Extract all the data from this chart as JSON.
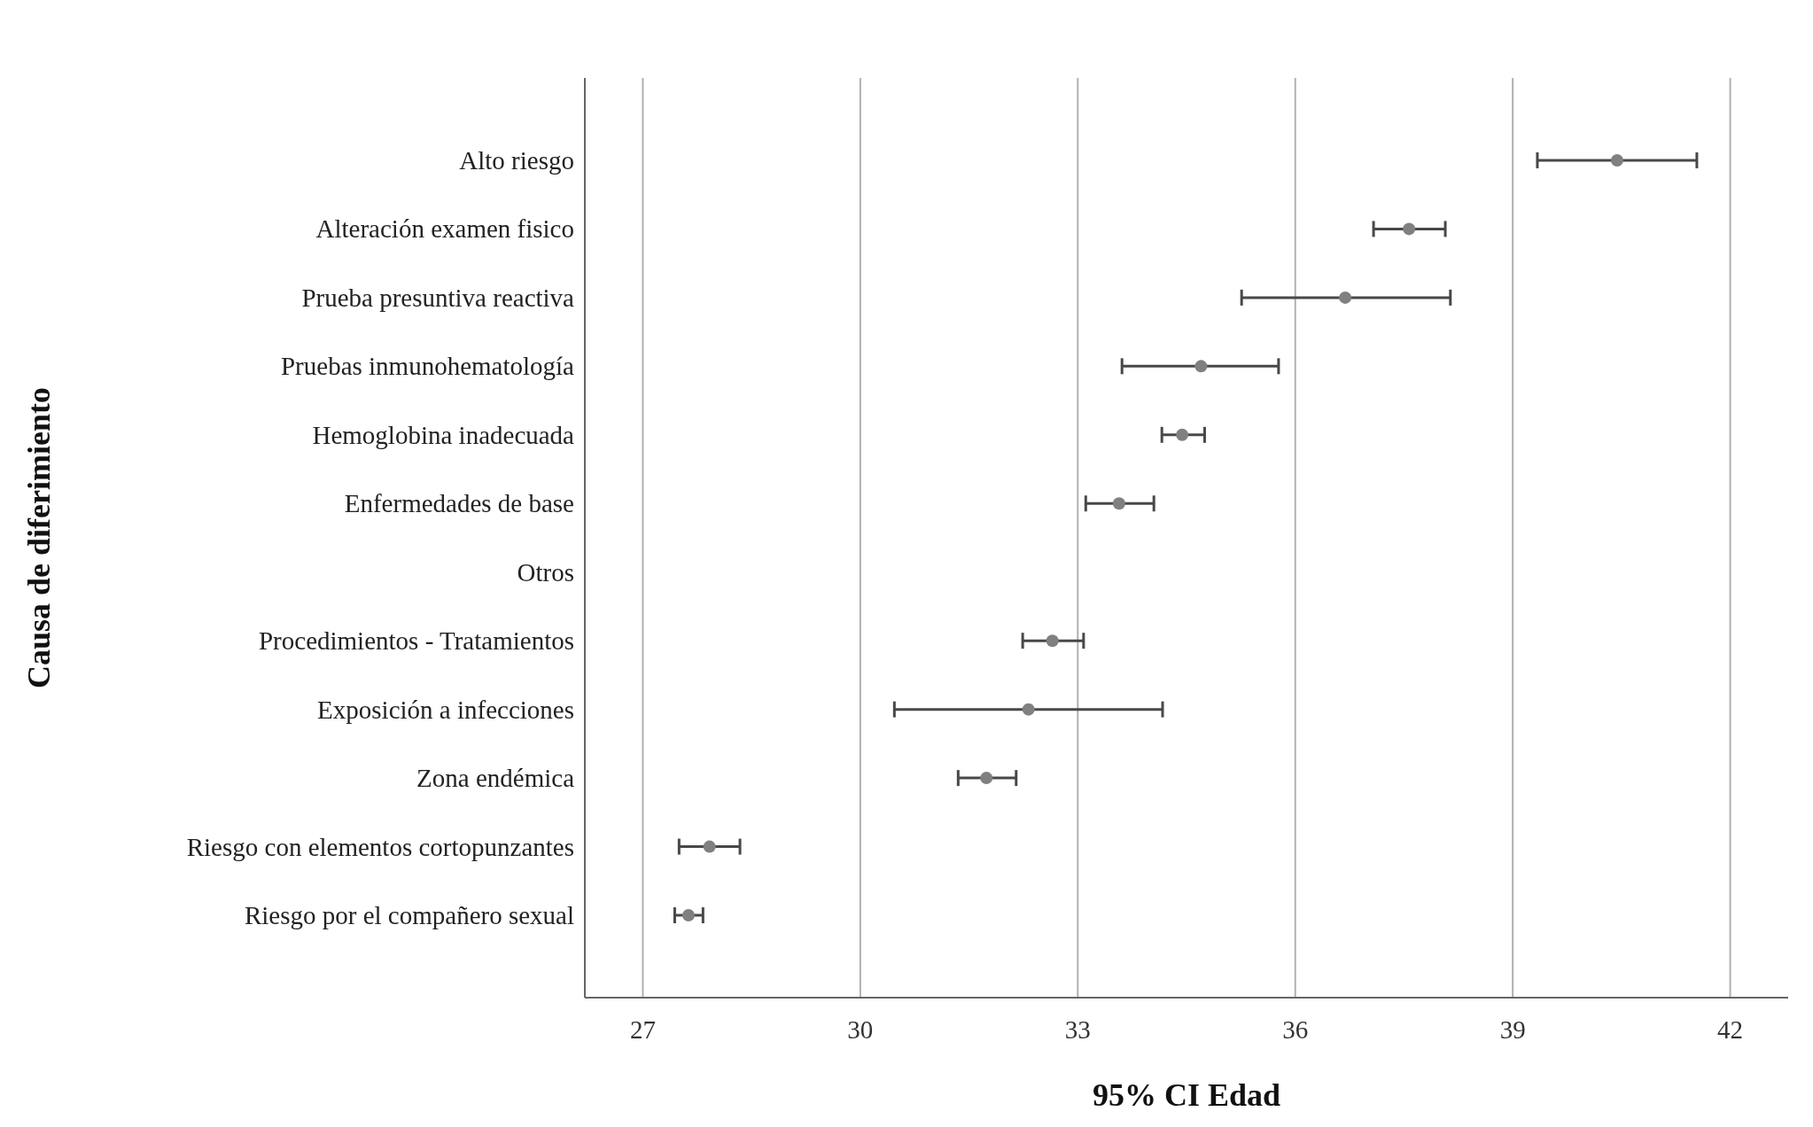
{
  "chart_data": {
    "type": "scatter",
    "orientation": "horizontal",
    "xlabel": "95% CI Edad",
    "ylabel": "Causa de diferimiento",
    "categories": [
      "Alto riesgo",
      "Alteración examen fisico",
      "Prueba presuntiva reactiva",
      "Pruebas inmunohematología",
      "Hemoglobina inadecuada",
      "Enfermedades de base",
      "Otros",
      "Procedimientos - Tratamientos",
      "Exposición a infecciones",
      "Zona endémica",
      "Riesgo con elementos cortopunzantes",
      "Riesgo por el compañero sexual"
    ],
    "values": [
      40.44,
      37.57,
      36.69,
      34.7,
      34.44,
      33.57,
      null,
      32.65,
      32.32,
      31.74,
      27.92,
      27.63
    ],
    "errors": [
      [
        39.34,
        41.54
      ],
      [
        37.08,
        38.07
      ],
      [
        35.26,
        38.14
      ],
      [
        33.61,
        35.77
      ],
      [
        34.16,
        34.75
      ],
      [
        33.11,
        34.05
      ],
      null,
      [
        32.24,
        33.08
      ],
      [
        30.47,
        34.17
      ],
      [
        31.35,
        32.15
      ],
      [
        27.5,
        28.34
      ],
      [
        27.44,
        27.83
      ]
    ],
    "color": "#808080",
    "marker": "circle",
    "grid": "x",
    "xlim": [
      26.2,
      42.8
    ],
    "xticks": [
      27,
      30,
      33,
      36,
      39,
      42
    ]
  }
}
